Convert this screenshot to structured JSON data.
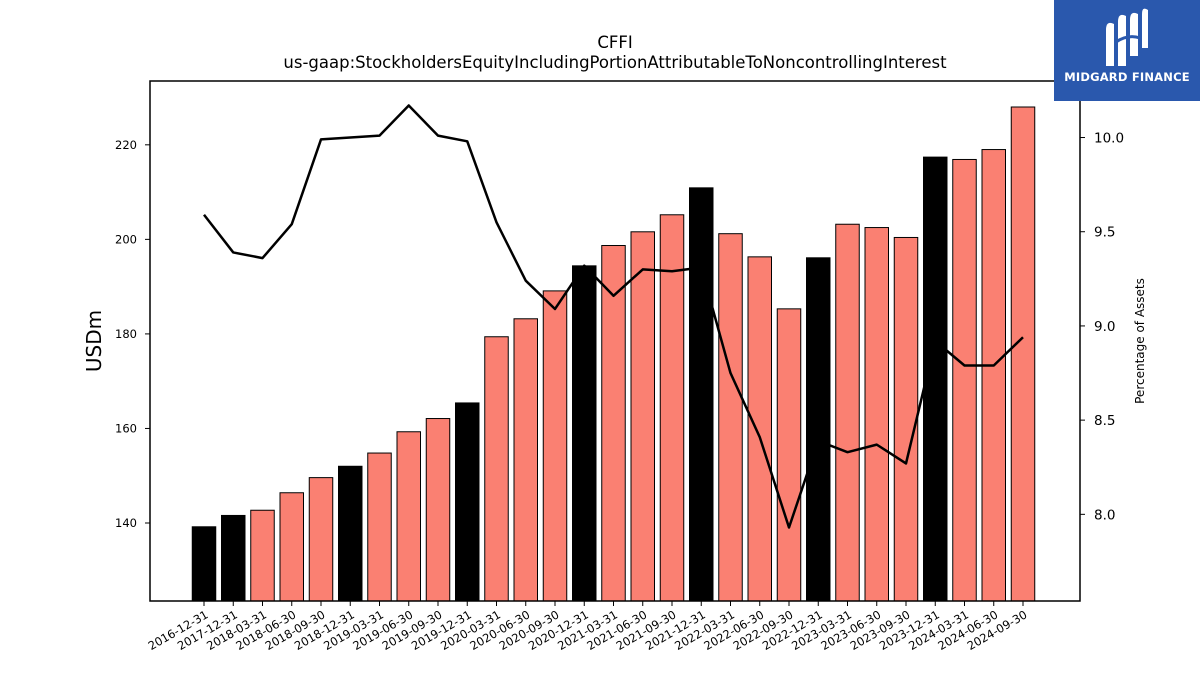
{
  "chart_data": {
    "type": "bar",
    "title": "CFFI",
    "subtitle": "us-gaap:StockholdersEquityIncludingPortionAttributableToNoncontrollingInterest",
    "ylabel": "USDm",
    "y2label": "Percentage of Assets",
    "ylim": [
      123.5,
      233.5
    ],
    "y2lim": [
      7.54,
      10.3
    ],
    "yticks": [
      140,
      160,
      180,
      200,
      220
    ],
    "y2ticks": [
      "8.0",
      "8.5",
      "9.0",
      "9.5",
      "10.0"
    ],
    "grid": false,
    "categories": [
      "2016-12-31",
      "2017-12-31",
      "2018-03-31",
      "2018-06-30",
      "2018-09-30",
      "2018-12-31",
      "2019-03-31",
      "2019-06-30",
      "2019-09-30",
      "2019-12-31",
      "2020-03-31",
      "2020-06-30",
      "2020-09-30",
      "2020-12-31",
      "2021-03-31",
      "2021-06-30",
      "2021-09-30",
      "2021-12-31",
      "2022-03-31",
      "2022-06-30",
      "2022-09-30",
      "2022-12-31",
      "2023-03-31",
      "2023-06-30",
      "2023-09-30",
      "2023-12-31",
      "2024-03-31",
      "2024-06-30",
      "2024-09-30"
    ],
    "series": [
      {
        "type": "bar",
        "values": [
          139.2,
          141.6,
          142.7,
          146.4,
          149.6,
          152.0,
          154.8,
          159.3,
          162.1,
          165.4,
          179.4,
          183.2,
          189.1,
          194.4,
          198.7,
          201.6,
          205.2,
          210.9,
          201.2,
          196.3,
          185.3,
          196.1,
          203.2,
          202.5,
          200.4,
          217.4,
          216.9,
          219.0,
          228.0
        ],
        "colors": [
          "#000000",
          "#000000",
          "#fa8072",
          "#fa8072",
          "#fa8072",
          "#000000",
          "#fa8072",
          "#fa8072",
          "#fa8072",
          "#000000",
          "#fa8072",
          "#fa8072",
          "#fa8072",
          "#000000",
          "#fa8072",
          "#fa8072",
          "#fa8072",
          "#000000",
          "#fa8072",
          "#fa8072",
          "#fa8072",
          "#000000",
          "#fa8072",
          "#fa8072",
          "#fa8072",
          "#000000",
          "#fa8072",
          "#fa8072",
          "#fa8072"
        ]
      },
      {
        "type": "line",
        "axis": "right",
        "color": "#000000",
        "values": [
          9.59,
          9.39,
          9.36,
          9.54,
          9.99,
          10.0,
          10.01,
          10.17,
          10.01,
          9.98,
          9.55,
          9.24,
          9.09,
          9.32,
          9.16,
          9.3,
          9.29,
          9.31,
          8.75,
          8.41,
          7.93,
          8.39,
          8.33,
          8.37,
          8.27,
          8.92,
          8.79,
          8.79,
          8.94
        ]
      }
    ]
  },
  "logo": {
    "text": "MIDGARD FINANCE",
    "color": "#2a58ad"
  }
}
